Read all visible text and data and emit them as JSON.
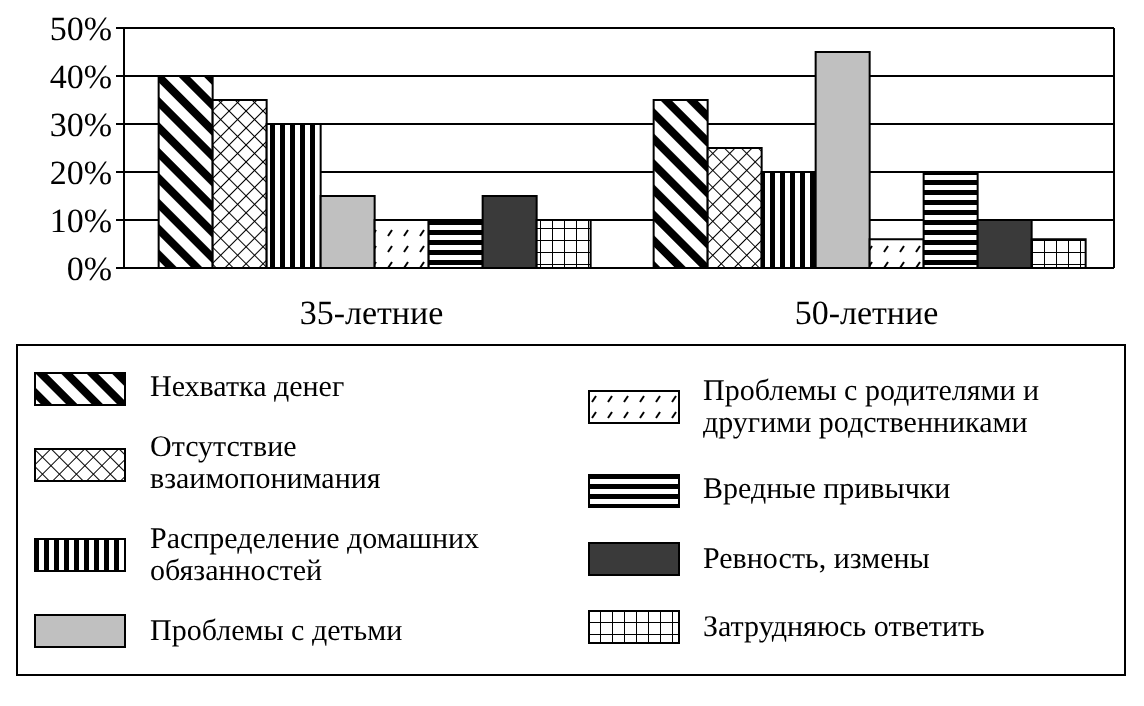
{
  "chart_data": {
    "type": "bar",
    "categories": [
      "35-летние",
      "50-летние"
    ],
    "series": [
      {
        "name": "Нехватка денег",
        "color": "#000000",
        "values": [
          40,
          35
        ]
      },
      {
        "name": "Отсутствие взаимопонимания",
        "color": "#000000",
        "values": [
          35,
          25
        ]
      },
      {
        "name": "Распределение домашних обязанностей",
        "color": "#000000",
        "values": [
          30,
          20
        ]
      },
      {
        "name": "Проблемы с детьми",
        "color": "#c0c0c0",
        "values": [
          15,
          45
        ]
      },
      {
        "name": "Проблемы с родителями и другими родственниками",
        "color": "#000000",
        "values": [
          10,
          6
        ]
      },
      {
        "name": "Вредные привычки",
        "color": "#000000",
        "values": [
          10,
          20
        ]
      },
      {
        "name": "Ревность, измены",
        "color": "#3a3a3a",
        "values": [
          15,
          10
        ]
      },
      {
        "name": "Затрудняюсь ответить",
        "color": "#000000",
        "values": [
          10,
          6
        ]
      }
    ],
    "ylim": [
      0,
      50
    ],
    "yticks": [
      {
        "value": 0,
        "label": "0%"
      },
      {
        "value": 10,
        "label": "10%"
      },
      {
        "value": 20,
        "label": "20%"
      },
      {
        "value": 30,
        "label": "30%"
      },
      {
        "value": 40,
        "label": "40%"
      },
      {
        "value": 50,
        "label": "50%"
      }
    ],
    "grid": "y",
    "legend": "bottom"
  }
}
